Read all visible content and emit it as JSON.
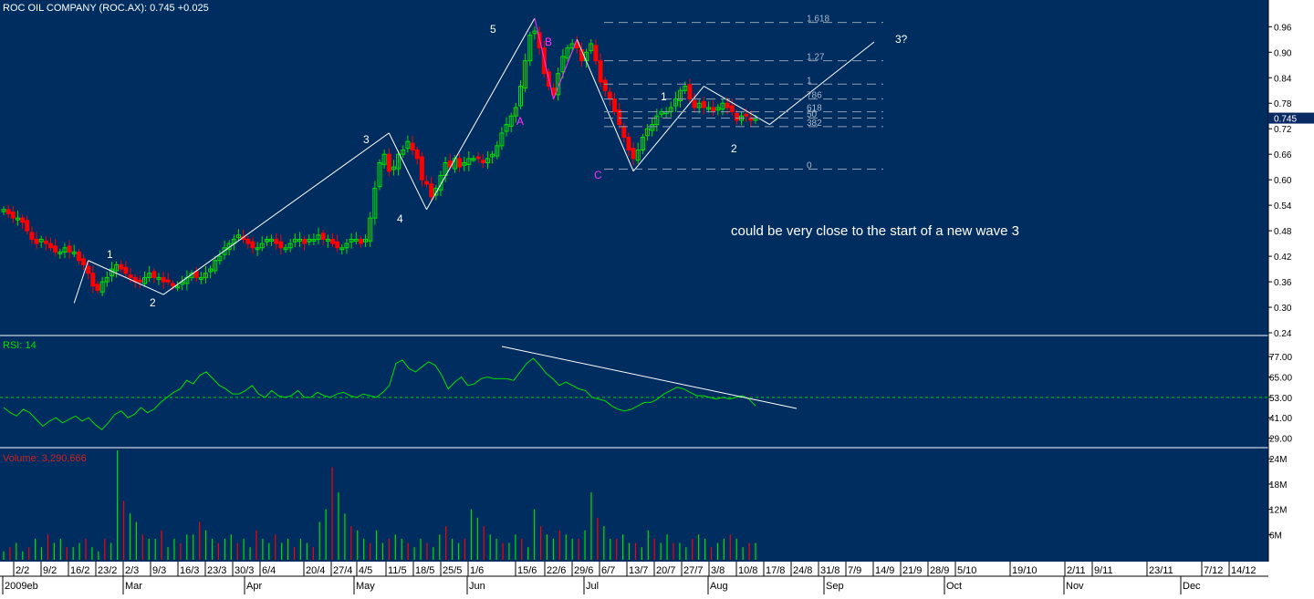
{
  "header": {
    "title": "ROC OIL COMPANY (ROC.AX): 0.745 +0.025",
    "rsi_label": "RSI: 14",
    "volume_label": "Volume: 3,290,666",
    "last_price_badge": "0.745"
  },
  "colors": {
    "background": "#002d60",
    "up_candle": "#00e000",
    "down_candle": "#ff0000",
    "rsi_line": "#00dd00",
    "rsi_midline": "#00cc00",
    "wave_lines": "#ffffff",
    "abc_wave": "#ff33ff",
    "fib_lines": "#8f9fb5",
    "axis_panel": "#ffffff",
    "volume_label": "#cc2222"
  },
  "annotations": {
    "wave1_low": "1",
    "wave2_low": "2",
    "wave3": "3",
    "wave4": "4",
    "wave5": "5",
    "a": "A",
    "b": "B",
    "c": "C",
    "wave1_new": "1",
    "wave2_new": "2",
    "wave3_target": "3?",
    "comment": "could be very close to the start of a new wave 3"
  },
  "fib_labels": [
    "1.618",
    "1.27",
    "1",
    "786",
    "618",
    "50",
    "382",
    "0"
  ],
  "chart_data": [
    {
      "type": "candlestick",
      "title": "ROC OIL COMPANY (ROC.AX): 0.745 +0.025",
      "price_axis_ticks": [
        "0.96",
        "0.90",
        "0.84",
        "0.78",
        "0.72",
        "0.66",
        "0.60",
        "0.54",
        "0.48",
        "0.42",
        "0.36",
        "0.30",
        "0.24"
      ],
      "ylim": [
        0.24,
        0.98
      ],
      "last_price": 0.745,
      "x_tick_labels": [
        "2/2",
        "9/2",
        "16/2",
        "23/2",
        "2/3",
        "9/3",
        "16/3",
        "23/3",
        "30/3",
        "6/4",
        "20/4",
        "27/4",
        "4/5",
        "11/5",
        "18/5",
        "25/5",
        "1/6",
        "15/6",
        "22/6",
        "29/6",
        "6/7",
        "13/7",
        "20/7",
        "27/7",
        "3/8",
        "10/8",
        "17/8",
        "24/8",
        "31/8",
        "7/9",
        "14/9",
        "21/9",
        "28/9",
        "5/10",
        "19/10",
        "2/11",
        "9/11",
        "23/11",
        "7/12",
        "14/12"
      ],
      "month_labels": [
        "2009eb",
        "Mar",
        "Apr",
        "May",
        "Jun",
        "Jul",
        "Aug",
        "Sep",
        "Oct",
        "Nov",
        "Dec"
      ],
      "close_series": [
        0.53,
        0.52,
        0.51,
        0.51,
        0.5,
        0.48,
        0.46,
        0.45,
        0.46,
        0.45,
        0.44,
        0.43,
        0.43,
        0.44,
        0.43,
        0.43,
        0.41,
        0.4,
        0.38,
        0.35,
        0.34,
        0.36,
        0.37,
        0.39,
        0.4,
        0.39,
        0.38,
        0.37,
        0.36,
        0.36,
        0.37,
        0.38,
        0.37,
        0.37,
        0.36,
        0.36,
        0.35,
        0.35,
        0.36,
        0.37,
        0.38,
        0.37,
        0.37,
        0.38,
        0.39,
        0.41,
        0.42,
        0.44,
        0.45,
        0.46,
        0.47,
        0.46,
        0.45,
        0.44,
        0.44,
        0.45,
        0.46,
        0.46,
        0.45,
        0.44,
        0.44,
        0.45,
        0.46,
        0.46,
        0.45,
        0.46,
        0.46,
        0.47,
        0.46,
        0.46,
        0.45,
        0.44,
        0.44,
        0.45,
        0.46,
        0.46,
        0.45,
        0.46,
        0.51,
        0.58,
        0.64,
        0.66,
        0.62,
        0.63,
        0.66,
        0.67,
        0.69,
        0.67,
        0.65,
        0.6,
        0.59,
        0.56,
        0.58,
        0.61,
        0.64,
        0.63,
        0.65,
        0.63,
        0.64,
        0.65,
        0.65,
        0.65,
        0.64,
        0.65,
        0.66,
        0.68,
        0.71,
        0.73,
        0.75,
        0.77,
        0.82,
        0.88,
        0.94,
        0.95,
        0.91,
        0.85,
        0.82,
        0.8,
        0.85,
        0.89,
        0.91,
        0.92,
        0.91,
        0.88,
        0.9,
        0.92,
        0.88,
        0.83,
        0.81,
        0.79,
        0.76,
        0.73,
        0.7,
        0.67,
        0.65,
        0.67,
        0.7,
        0.72,
        0.73,
        0.75,
        0.76,
        0.76,
        0.77,
        0.79,
        0.81,
        0.82,
        0.79,
        0.77,
        0.78,
        0.77,
        0.77,
        0.76,
        0.77,
        0.78,
        0.77,
        0.76,
        0.74,
        0.75,
        0.75,
        0.74,
        0.745
      ],
      "wave_points": [
        {
          "label": "1",
          "price": 0.41
        },
        {
          "label": "2",
          "price": 0.33
        },
        {
          "label": "3",
          "price": 0.71
        },
        {
          "label": "4",
          "price": 0.53
        },
        {
          "label": "5",
          "price": 0.98
        },
        {
          "label": "A",
          "price": 0.79
        },
        {
          "label": "B",
          "price": 0.93
        },
        {
          "label": "C",
          "price": 0.62
        },
        {
          "label": "1",
          "price": 0.82
        },
        {
          "label": "2",
          "price": 0.73
        },
        {
          "label": "3?",
          "price": 0.96
        }
      ]
    },
    {
      "type": "line",
      "title": "RSI: 14",
      "y_tick_labels": [
        "77.00",
        "65.00",
        "53.00",
        "41.00",
        "29.00"
      ],
      "ylim": [
        25,
        83
      ],
      "midline": 53,
      "values": [
        47,
        44,
        42,
        46,
        44,
        40,
        36,
        39,
        41,
        38,
        40,
        42,
        39,
        41,
        37,
        34,
        38,
        43,
        45,
        41,
        43,
        47,
        44,
        46,
        50,
        53,
        56,
        58,
        63,
        61,
        66,
        68,
        64,
        60,
        58,
        55,
        55,
        57,
        60,
        55,
        53,
        57,
        54,
        53,
        54,
        57,
        53,
        53,
        56,
        54,
        53,
        55,
        56,
        54,
        53,
        55,
        54,
        53,
        56,
        60,
        73,
        75,
        70,
        68,
        71,
        74,
        72,
        66,
        58,
        62,
        65,
        60,
        61,
        64,
        65,
        64,
        64,
        64,
        63,
        68,
        73,
        76,
        72,
        67,
        64,
        60,
        62,
        60,
        58,
        57,
        53,
        52,
        51,
        48,
        46,
        45,
        46,
        48,
        50,
        50,
        52,
        55,
        57,
        59,
        58,
        56,
        54,
        54,
        53,
        52,
        53,
        52,
        53,
        54,
        52,
        48
      ],
      "trendline_label": ""
    },
    {
      "type": "bar",
      "title": "Volume: 3,290,666",
      "y_tick_labels": [
        "24M",
        "18M",
        "12M",
        "6M"
      ],
      "ylim": [
        0,
        26
      ],
      "values_millions": [
        2,
        3,
        4,
        2,
        3,
        5,
        3,
        6,
        4,
        5,
        3,
        3,
        4,
        5,
        3,
        2,
        5,
        4,
        26,
        14,
        11,
        9,
        6,
        5,
        5,
        7,
        3,
        5,
        4,
        6,
        6,
        9,
        7,
        5,
        4,
        5,
        6,
        4,
        5,
        3,
        7,
        5,
        4,
        6,
        4,
        5,
        3,
        5,
        4,
        3,
        9,
        12,
        22,
        16,
        11,
        8,
        7,
        5,
        4,
        7,
        4,
        5,
        6,
        5,
        4,
        3,
        5,
        4,
        3,
        6,
        8,
        5,
        4,
        5,
        12,
        10,
        8,
        6,
        5,
        4,
        4,
        6,
        5,
        3,
        12,
        8,
        6,
        5,
        7,
        6,
        5,
        5,
        7,
        16,
        10,
        8,
        5,
        5,
        6,
        4,
        4,
        3,
        7,
        5,
        4,
        6,
        4,
        4,
        3,
        5,
        6,
        5,
        3,
        4,
        5,
        6,
        5,
        3,
        4,
        4
      ]
    }
  ]
}
